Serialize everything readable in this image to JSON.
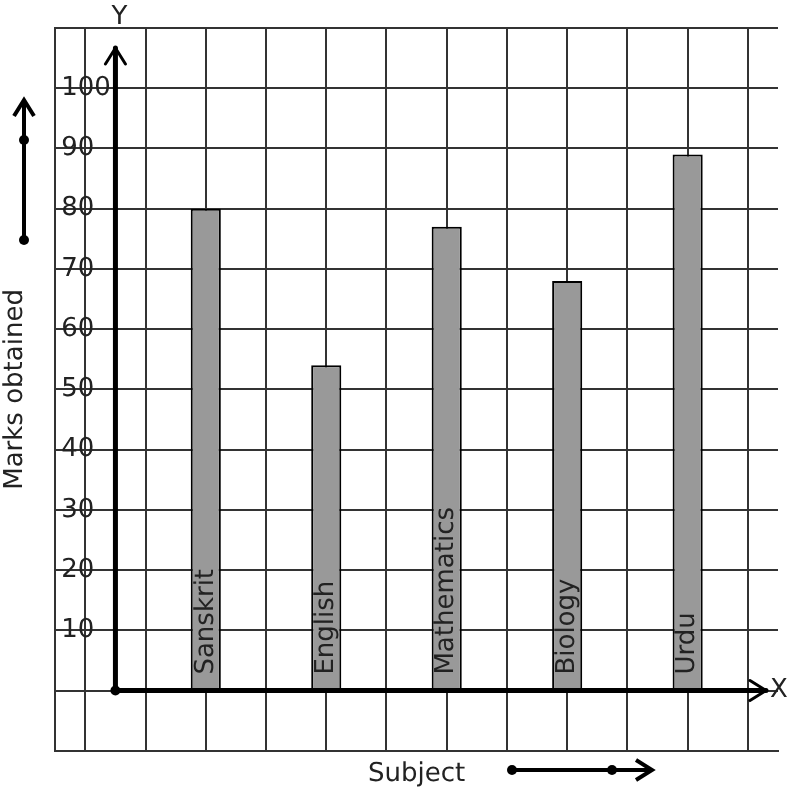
{
  "chart_data": {
    "type": "bar",
    "xlabel": "Subject",
    "ylabel": "Marks obtained",
    "categories": [
      "Sanskrit",
      "English",
      "Mathematics",
      "Biology",
      "Urdu"
    ],
    "values": [
      80,
      54,
      77,
      68,
      89
    ],
    "color": "#999999",
    "ylim": [
      -10,
      110
    ],
    "yticks": [
      {
        "value": -10,
        "label": null
      },
      {
        "value": 0,
        "label": null
      },
      10,
      20,
      30,
      40,
      50,
      60,
      70,
      80,
      90,
      100,
      {
        "value": 110,
        "label": null
      }
    ],
    "grid": true,
    "annotations": [
      "X",
      "Y"
    ]
  }
}
